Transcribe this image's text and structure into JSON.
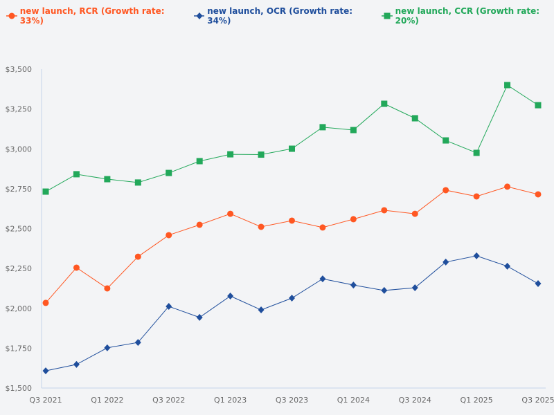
{
  "chart_data": {
    "type": "line",
    "title": "",
    "xlabel": "",
    "ylabel": "",
    "ylim": [
      1500,
      3500
    ],
    "yticks": [
      "$1,500",
      "$1,750",
      "$2,000",
      "$2,250",
      "$2,500",
      "$2,750",
      "$3,000",
      "$3,250",
      "$3,500"
    ],
    "ytick_values": [
      1500,
      1750,
      2000,
      2250,
      2500,
      2750,
      3000,
      3250,
      3500
    ],
    "x": [
      "Q3 2021",
      "Q4 2021",
      "Q1 2022",
      "Q2 2022",
      "Q3 2022",
      "Q4 2022",
      "Q1 2023",
      "Q2 2023",
      "Q3 2023",
      "Q4 2023",
      "Q1 2024",
      "Q2 2024",
      "Q3 2024",
      "Q4 2024",
      "Q1 2025",
      "Q2 2025",
      "Q3 2025"
    ],
    "xticks": [
      "Q3 2021",
      "Q1 2022",
      "Q3 2022",
      "Q1 2023",
      "Q3 2023",
      "Q1 2024",
      "Q3 2024",
      "Q1 2025",
      "Q3 2025"
    ],
    "grid": false,
    "legend_position": "top-left",
    "series": [
      {
        "name": "new launch, RCR (Growth rate: 33%)",
        "color": "#ff5722",
        "marker": "circle",
        "values": [
          2034,
          2255,
          2125,
          2324,
          2459,
          2524,
          2593,
          2511,
          2550,
          2507,
          2559,
          2615,
          2593,
          2741,
          2702,
          2763,
          2715
        ]
      },
      {
        "name": "new launch, OCR (Growth rate: 34%)",
        "color": "#1f4e9c",
        "marker": "diamond",
        "values": [
          1608,
          1648,
          1752,
          1786,
          2012,
          1943,
          2077,
          1990,
          2064,
          2185,
          2146,
          2112,
          2129,
          2290,
          2329,
          2264,
          2155
        ]
      },
      {
        "name": "new launch, CCR (Growth rate: 20%)",
        "color": "#22a85a",
        "marker": "square",
        "values": [
          2732,
          2841,
          2810,
          2789,
          2849,
          2923,
          2966,
          2964,
          3001,
          3136,
          3118,
          3283,
          3192,
          3053,
          2975,
          3400,
          3274
        ]
      }
    ]
  }
}
